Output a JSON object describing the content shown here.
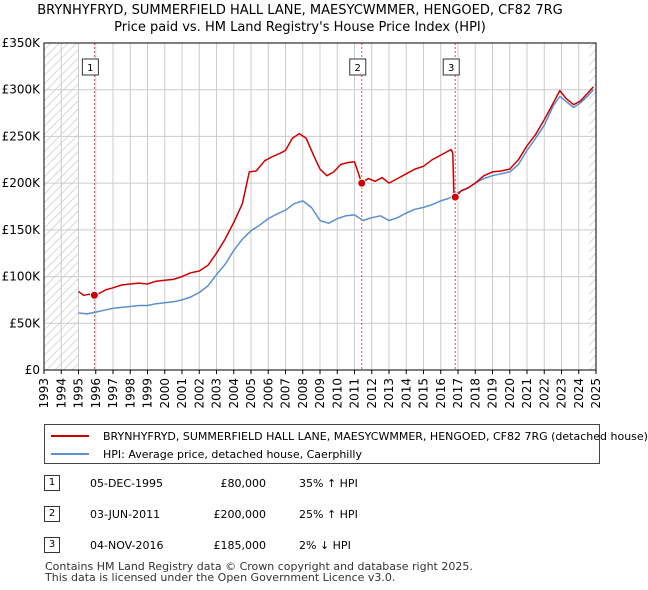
{
  "chart_data": {
    "type": "line",
    "title": "BRYNHYFRYD, SUMMERFIELD HALL LANE, MAESYCWMMER, HENGOED, CF82 7RG",
    "subtitle": "Price paid vs. HM Land Registry's House Price Index (HPI)",
    "xlim": [
      1993,
      2025
    ],
    "ylim": [
      0,
      350000
    ],
    "x_ticks": [
      "1993",
      "1994",
      "1995",
      "1996",
      "1997",
      "1998",
      "1999",
      "2000",
      "2001",
      "2002",
      "2003",
      "2004",
      "2005",
      "2006",
      "2007",
      "2008",
      "2009",
      "2010",
      "2011",
      "2012",
      "2013",
      "2014",
      "2015",
      "2016",
      "2017",
      "2018",
      "2019",
      "2020",
      "2021",
      "2022",
      "2023",
      "2024",
      "2025"
    ],
    "y_ticks": [
      {
        "value": 0,
        "label": "£0"
      },
      {
        "value": 50000,
        "label": "£50K"
      },
      {
        "value": 100000,
        "label": "£100K"
      },
      {
        "value": 150000,
        "label": "£150K"
      },
      {
        "value": 200000,
        "label": "£200K"
      },
      {
        "value": 250000,
        "label": "£250K"
      },
      {
        "value": 300000,
        "label": "£300K"
      },
      {
        "value": 350000,
        "label": "£350K"
      }
    ],
    "grid": true,
    "hatched_regions": [
      [
        1993,
        1995.0
      ],
      [
        2024.6,
        2025
      ]
    ],
    "series": [
      {
        "name": "BRYNHYFRYD, SUMMERFIELD HALL LANE, MAESYCWMMER, HENGOED, CF82 7RG (detached house)",
        "color": "#cc0000",
        "points": [
          [
            1995.0,
            84000
          ],
          [
            1995.3,
            80000
          ],
          [
            1995.6,
            81000
          ],
          [
            1995.92,
            80000
          ],
          [
            1996.2,
            82000
          ],
          [
            1996.6,
            86000
          ],
          [
            1997.0,
            88000
          ],
          [
            1997.5,
            91000
          ],
          [
            1998.0,
            92000
          ],
          [
            1998.5,
            93000
          ],
          [
            1999.0,
            92000
          ],
          [
            1999.5,
            95000
          ],
          [
            2000.0,
            96000
          ],
          [
            2000.5,
            97000
          ],
          [
            2001.0,
            100000
          ],
          [
            2001.5,
            104000
          ],
          [
            2002.0,
            106000
          ],
          [
            2002.5,
            112000
          ],
          [
            2003.0,
            125000
          ],
          [
            2003.5,
            140000
          ],
          [
            2004.0,
            158000
          ],
          [
            2004.5,
            178000
          ],
          [
            2004.9,
            212000
          ],
          [
            2005.3,
            213000
          ],
          [
            2005.8,
            224000
          ],
          [
            2006.2,
            228000
          ],
          [
            2006.7,
            232000
          ],
          [
            2007.0,
            235000
          ],
          [
            2007.4,
            248000
          ],
          [
            2007.8,
            253000
          ],
          [
            2008.2,
            248000
          ],
          [
            2008.6,
            231000
          ],
          [
            2009.0,
            215000
          ],
          [
            2009.4,
            208000
          ],
          [
            2009.8,
            212000
          ],
          [
            2010.2,
            220000
          ],
          [
            2010.6,
            222000
          ],
          [
            2011.0,
            223000
          ],
          [
            2011.42,
            200000
          ],
          [
            2011.8,
            205000
          ],
          [
            2012.2,
            202000
          ],
          [
            2012.6,
            206000
          ],
          [
            2013.0,
            200000
          ],
          [
            2013.5,
            205000
          ],
          [
            2014.0,
            210000
          ],
          [
            2014.5,
            215000
          ],
          [
            2015.0,
            218000
          ],
          [
            2015.5,
            225000
          ],
          [
            2016.0,
            230000
          ],
          [
            2016.6,
            236000
          ],
          [
            2016.7,
            232000
          ],
          [
            2016.76,
            188000
          ],
          [
            2016.84,
            185000
          ],
          [
            2017.2,
            192000
          ],
          [
            2017.6,
            195000
          ],
          [
            2018.0,
            200000
          ],
          [
            2018.5,
            208000
          ],
          [
            2019.0,
            212000
          ],
          [
            2019.5,
            213000
          ],
          [
            2020.0,
            215000
          ],
          [
            2020.5,
            225000
          ],
          [
            2021.0,
            240000
          ],
          [
            2021.5,
            252000
          ],
          [
            2022.0,
            268000
          ],
          [
            2022.5,
            285000
          ],
          [
            2022.9,
            299000
          ],
          [
            2023.3,
            290000
          ],
          [
            2023.7,
            284000
          ],
          [
            2024.1,
            288000
          ],
          [
            2024.5,
            296000
          ],
          [
            2024.85,
            303000
          ]
        ]
      },
      {
        "name": "HPI: Average price, detached house, Caerphilly",
        "color": "#5b8fd0",
        "points": [
          [
            1995.0,
            61000
          ],
          [
            1995.5,
            60000
          ],
          [
            1996.0,
            62000
          ],
          [
            1996.5,
            64000
          ],
          [
            1997.0,
            66000
          ],
          [
            1997.5,
            67000
          ],
          [
            1998.0,
            68000
          ],
          [
            1998.5,
            69000
          ],
          [
            1999.0,
            69000
          ],
          [
            1999.5,
            71000
          ],
          [
            2000.0,
            72000
          ],
          [
            2000.5,
            73000
          ],
          [
            2001.0,
            75000
          ],
          [
            2001.5,
            78000
          ],
          [
            2002.0,
            83000
          ],
          [
            2002.5,
            90000
          ],
          [
            2003.0,
            102000
          ],
          [
            2003.5,
            113000
          ],
          [
            2004.0,
            128000
          ],
          [
            2004.5,
            140000
          ],
          [
            2005.0,
            149000
          ],
          [
            2005.5,
            155000
          ],
          [
            2006.0,
            162000
          ],
          [
            2006.5,
            167000
          ],
          [
            2007.0,
            171000
          ],
          [
            2007.5,
            178000
          ],
          [
            2008.0,
            181000
          ],
          [
            2008.5,
            174000
          ],
          [
            2009.0,
            160000
          ],
          [
            2009.5,
            157000
          ],
          [
            2010.0,
            162000
          ],
          [
            2010.5,
            165000
          ],
          [
            2011.0,
            166000
          ],
          [
            2011.5,
            160000
          ],
          [
            2012.0,
            163000
          ],
          [
            2012.5,
            165000
          ],
          [
            2013.0,
            160000
          ],
          [
            2013.5,
            163000
          ],
          [
            2014.0,
            168000
          ],
          [
            2014.5,
            172000
          ],
          [
            2015.0,
            174000
          ],
          [
            2015.5,
            177000
          ],
          [
            2016.0,
            181000
          ],
          [
            2016.5,
            184000
          ],
          [
            2017.0,
            190000
          ],
          [
            2017.5,
            194000
          ],
          [
            2018.0,
            200000
          ],
          [
            2018.5,
            205000
          ],
          [
            2019.0,
            208000
          ],
          [
            2019.5,
            210000
          ],
          [
            2020.0,
            212000
          ],
          [
            2020.5,
            220000
          ],
          [
            2021.0,
            235000
          ],
          [
            2021.5,
            248000
          ],
          [
            2022.0,
            262000
          ],
          [
            2022.5,
            282000
          ],
          [
            2022.9,
            293000
          ],
          [
            2023.3,
            287000
          ],
          [
            2023.7,
            281000
          ],
          [
            2024.1,
            286000
          ],
          [
            2024.5,
            293000
          ],
          [
            2024.85,
            300000
          ]
        ]
      }
    ],
    "annotations": [
      {
        "label": "1",
        "x": 1995.92,
        "y": 80000
      },
      {
        "label": "2",
        "x": 2011.42,
        "y": 200000
      },
      {
        "label": "3",
        "x": 2016.84,
        "y": 185000
      }
    ]
  },
  "legend": {
    "property_label": "BRYNHYFRYD, SUMMERFIELD HALL LANE, MAESYCWMMER, HENGOED, CF82 7RG (detached house)",
    "hpi_label": "HPI: Average price, detached house, Caerphilly"
  },
  "transactions": [
    {
      "num": "1",
      "date": "05-DEC-1995",
      "price": "£80,000",
      "hpi": "35% ↑ HPI"
    },
    {
      "num": "2",
      "date": "03-JUN-2011",
      "price": "£200,000",
      "hpi": "25% ↑ HPI"
    },
    {
      "num": "3",
      "date": "04-NOV-2016",
      "price": "£185,000",
      "hpi": "2% ↓ HPI"
    }
  ],
  "footer": {
    "line1": "Contains HM Land Registry data © Crown copyright and database right 2025.",
    "line2": "This data is licensed under the Open Government Licence v3.0."
  },
  "colors": {
    "property": "#cc0000",
    "hpi": "#5b8fd0",
    "grid": "#cccccc"
  }
}
